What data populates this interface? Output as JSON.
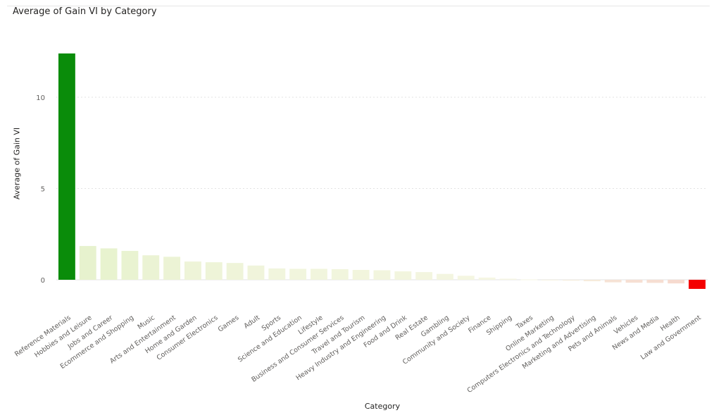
{
  "chart_data": {
    "type": "bar",
    "title": "Average of Gain VI by Category",
    "xlabel": "Category",
    "ylabel": "Average of Gain VI",
    "ylim": [
      -0.6,
      13.1
    ],
    "yticks": [
      0,
      5,
      10
    ],
    "grid": true,
    "colors": {
      "max": "#0a8c0a",
      "min": "#f40000",
      "mid": "#f6f6e4"
    },
    "categories": [
      "Reference Materials",
      "Hobbies and Leisure",
      "Jobs and Career",
      "Ecommerce and Shopping",
      "Music",
      "Arts and Entertainment",
      "Home and Garden",
      "Consumer Electronics",
      "Games",
      "Adult",
      "Sports",
      "Science and Education",
      "Lifestyle",
      "Business and Consumer Services",
      "Travel and Tourism",
      "Heavy Industry and Engineering",
      "Food and Drink",
      "Real Estate",
      "Gambling",
      "Community and Society",
      "Finance",
      "Shipping",
      "Taxes",
      "Online Marketing",
      "Computers Electronics and Technology",
      "Marketing and Advertising",
      "Pets and Animals",
      "Vehicles",
      "News and Media",
      "Health",
      "Law and Government"
    ],
    "values": [
      12.4,
      1.85,
      1.72,
      1.58,
      1.34,
      1.26,
      1.0,
      0.96,
      0.92,
      0.78,
      0.62,
      0.6,
      0.6,
      0.58,
      0.54,
      0.52,
      0.46,
      0.42,
      0.32,
      0.22,
      0.12,
      0.06,
      0.02,
      -0.02,
      -0.05,
      -0.08,
      -0.14,
      -0.16,
      -0.17,
      -0.2,
      -0.5
    ]
  }
}
